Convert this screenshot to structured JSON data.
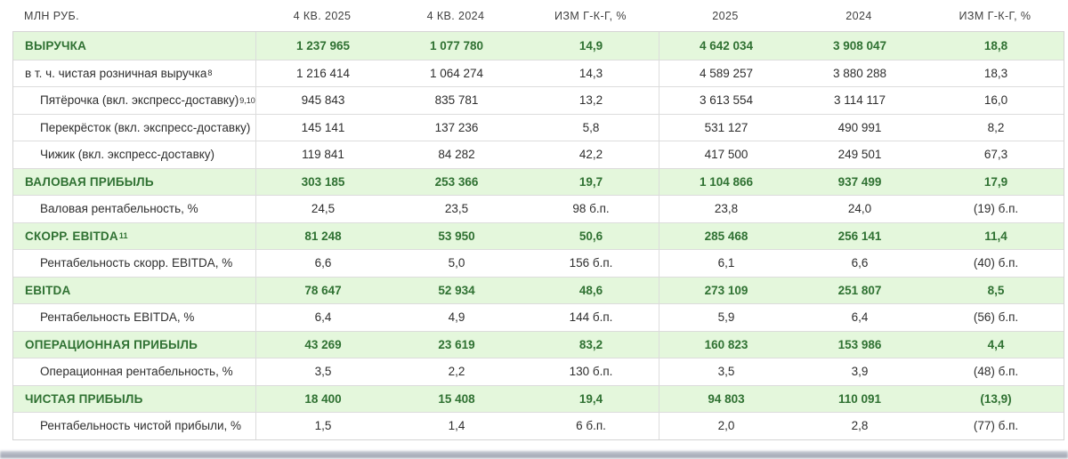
{
  "table": {
    "unit_label": "МЛН РУБ.",
    "columns": [
      "МЛН РУБ.",
      "4 КВ. 2025",
      "4 КВ. 2024",
      "ИЗМ Г-К-Г, %",
      "2025",
      "2024",
      "ИЗМ Г-К-Г, %"
    ],
    "rows": [
      {
        "label": "ВЫРУЧКА",
        "sup": "",
        "style": "highlight",
        "indent": 0,
        "values": [
          "1 237 965",
          "1 077 780",
          "14,9",
          "4 642 034",
          "3 908 047",
          "18,8"
        ]
      },
      {
        "label": "в т. ч. чистая розничная выручка",
        "sup": "8",
        "style": "normal",
        "indent": 0,
        "values": [
          "1 216 414",
          "1 064 274",
          "14,3",
          "4 589 257",
          "3 880 288",
          "18,3"
        ]
      },
      {
        "label": "Пятёрочка (вкл. экспресс-доставку)",
        "sup": "9,10",
        "style": "normal",
        "indent": 1,
        "values": [
          "945 843",
          "835 781",
          "13,2",
          "3 613 554",
          "3 114 117",
          "16,0"
        ]
      },
      {
        "label": "Перекрёсток (вкл. экспресс-доставку)",
        "sup": "",
        "style": "normal",
        "indent": 1,
        "values": [
          "145 141",
          "137 236",
          "5,8",
          "531 127",
          "490 991",
          "8,2"
        ]
      },
      {
        "label": "Чижик (вкл. экспресс-доставку)",
        "sup": "",
        "style": "normal",
        "indent": 1,
        "values": [
          "119 841",
          "84 282",
          "42,2",
          "417 500",
          "249 501",
          "67,3"
        ]
      },
      {
        "label": "ВАЛОВАЯ ПРИБЫЛЬ",
        "sup": "",
        "style": "highlight",
        "indent": 0,
        "values": [
          "303 185",
          "253 366",
          "19,7",
          "1 104 866",
          "937 499",
          "17,9"
        ]
      },
      {
        "label": "Валовая рентабельность, %",
        "sup": "",
        "style": "normal",
        "indent": 1,
        "values": [
          "24,5",
          "23,5",
          "98 б.п.",
          "23,8",
          "24,0",
          "(19) б.п."
        ]
      },
      {
        "label": "СКОРР. EBITDA",
        "sup": "11",
        "style": "highlight",
        "indent": 0,
        "values": [
          "81 248",
          "53 950",
          "50,6",
          "285 468",
          "256 141",
          "11,4"
        ]
      },
      {
        "label": "Рентабельность скорр. EBITDA, %",
        "sup": "",
        "style": "normal",
        "indent": 1,
        "values": [
          "6,6",
          "5,0",
          "156 б.п.",
          "6,1",
          "6,6",
          "(40) б.п."
        ]
      },
      {
        "label": "EBITDA",
        "sup": "",
        "style": "highlight",
        "indent": 0,
        "values": [
          "78 647",
          "52 934",
          "48,6",
          "273 109",
          "251 807",
          "8,5"
        ]
      },
      {
        "label": "Рентабельность EBITDA, %",
        "sup": "",
        "style": "normal",
        "indent": 1,
        "values": [
          "6,4",
          "4,9",
          "144 б.п.",
          "5,9",
          "6,4",
          "(56) б.п."
        ]
      },
      {
        "label": "ОПЕРАЦИОННАЯ ПРИБЫЛЬ",
        "sup": "",
        "style": "highlight",
        "indent": 0,
        "values": [
          "43 269",
          "23 619",
          "83,2",
          "160 823",
          "153 986",
          "4,4"
        ]
      },
      {
        "label": "Операционная рентабельность, %",
        "sup": "",
        "style": "normal",
        "indent": 1,
        "values": [
          "3,5",
          "2,2",
          "130 б.п.",
          "3,5",
          "3,9",
          "(48) б.п."
        ]
      },
      {
        "label": "ЧИСТАЯ ПРИБЫЛЬ",
        "sup": "",
        "style": "highlight",
        "indent": 0,
        "values": [
          "18 400",
          "15 408",
          "19,4",
          "94 803",
          "110 091",
          "(13,9)"
        ]
      },
      {
        "label": "Рентабельность чистой прибыли, %",
        "sup": "",
        "style": "normal",
        "indent": 1,
        "values": [
          "1,5",
          "1,4",
          "6 б.п.",
          "2,0",
          "2,8",
          "(77) б.п."
        ]
      }
    ]
  },
  "colors": {
    "highlight_row_bg": "#e4f7dc",
    "highlight_text": "#2f7132",
    "body_text": "#2e2e2e",
    "header_text": "#414141",
    "grid_line": "#dcdcdc"
  }
}
